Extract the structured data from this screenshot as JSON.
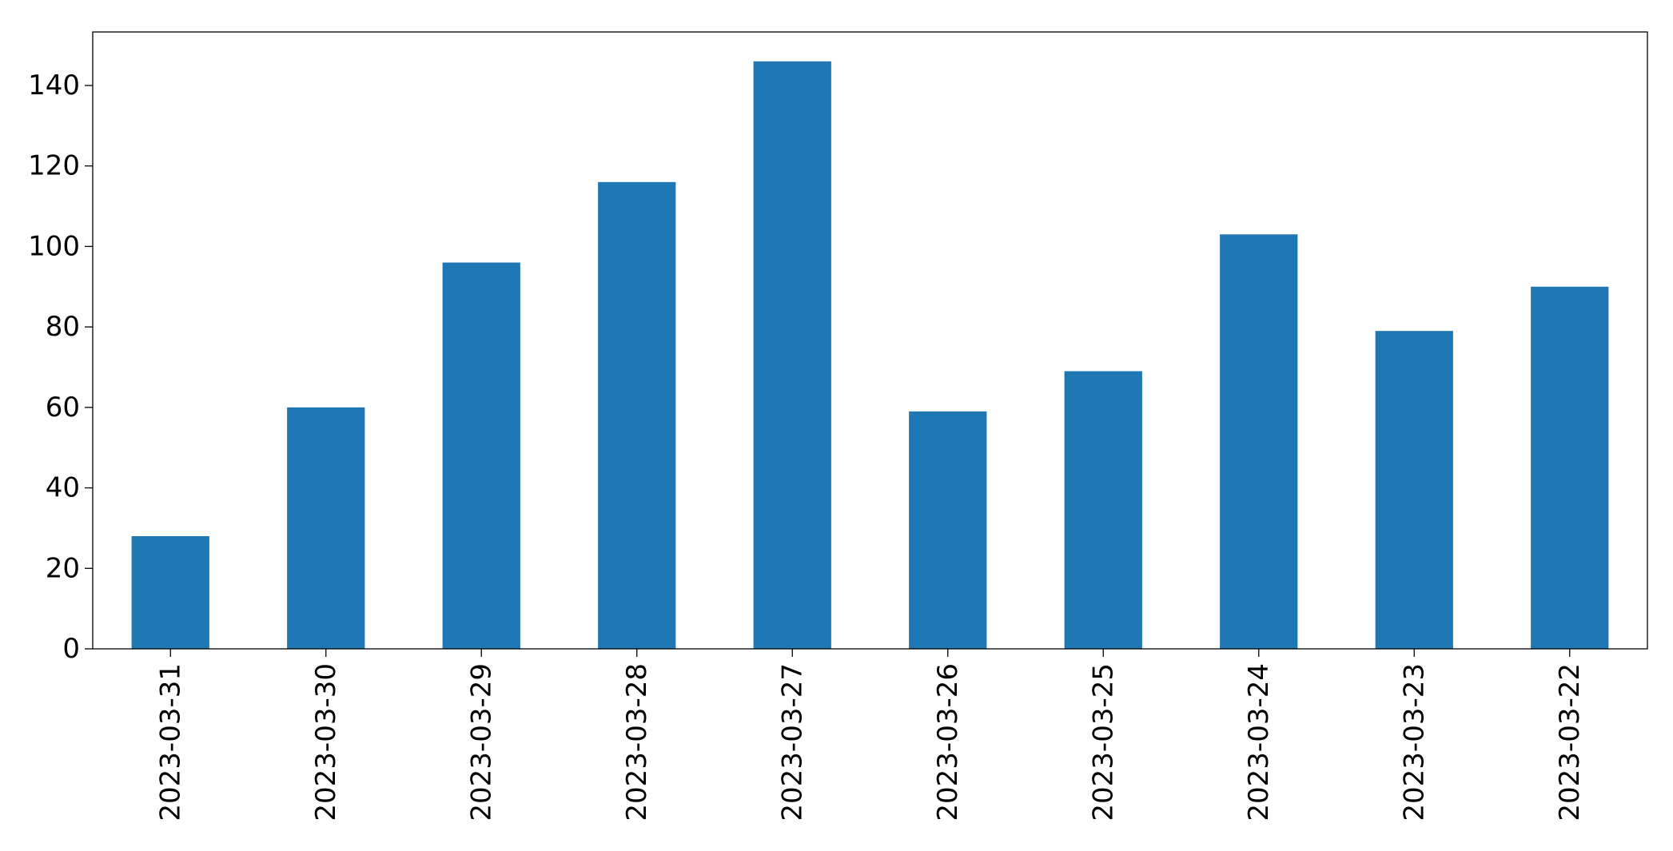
{
  "chart_data": {
    "type": "bar",
    "title": "",
    "xlabel": "",
    "ylabel": "",
    "categories": [
      "2023-03-31",
      "2023-03-30",
      "2023-03-29",
      "2023-03-28",
      "2023-03-27",
      "2023-03-26",
      "2023-03-25",
      "2023-03-24",
      "2023-03-23",
      "2023-03-22"
    ],
    "series": [
      {
        "values": [
          28,
          60,
          96,
          116,
          146,
          59,
          69,
          103,
          79,
          90
        ],
        "color": "#1f77b4"
      }
    ],
    "yticks": [
      0,
      20,
      40,
      60,
      80,
      100,
      120,
      140
    ],
    "ylim": [
      0,
      153.3
    ],
    "grid": false,
    "legend": "none"
  }
}
